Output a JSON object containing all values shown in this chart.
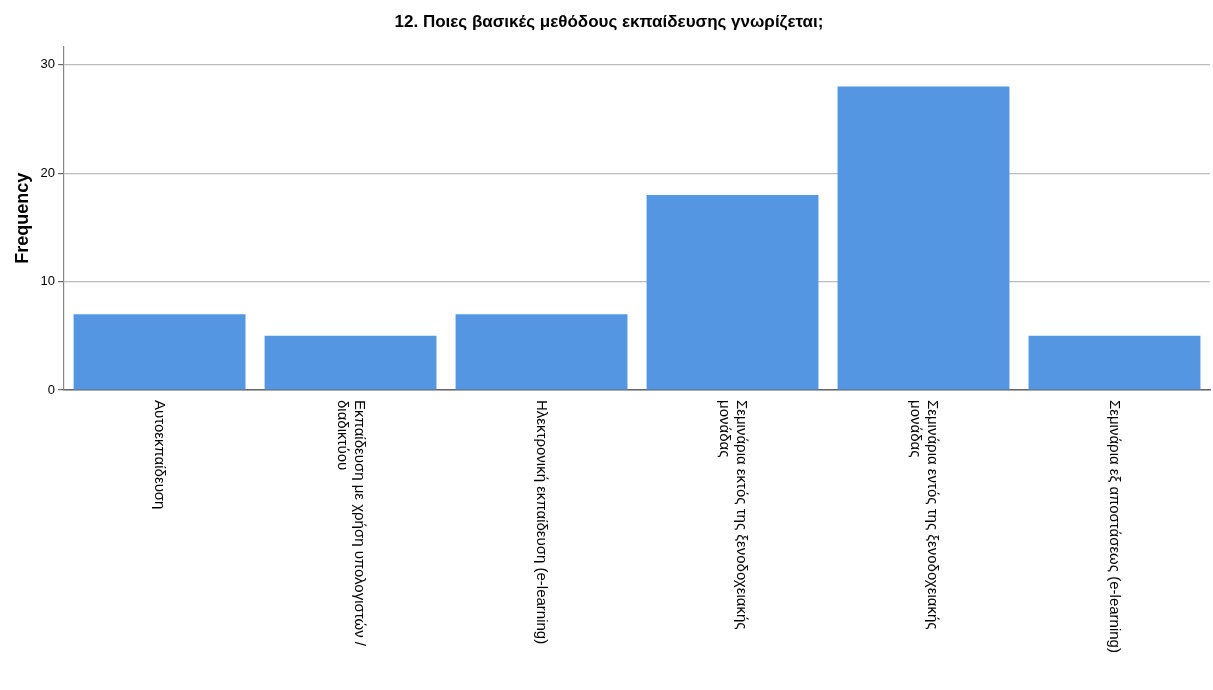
{
  "chart_data": {
    "type": "bar",
    "title": "12. Ποιες βασικές μεθόδους εκπαίδευσης γνωρίζεται;",
    "ylabel": "Frequency",
    "categories": [
      "Αυτοεκπαίδευση",
      "Εκπαίδευση με χρήση υπολογιστών / διαδικτύου",
      "Ηλεκτρονική εκπαίδευση (e-learning)",
      "Σεμινάρια εκτός της ξενοδοχειακής μονάδας",
      "Σεμινάρια εντός της ξενοδοχειακής μονάδας",
      "Σεμινάρια εξ αποστάσεως (e-learning)"
    ],
    "values": [
      7,
      5,
      7,
      18,
      28,
      5
    ],
    "color": "#5596e3",
    "ylim": [
      0,
      31.7
    ],
    "yticks": [
      0,
      10,
      20,
      30
    ],
    "grid": "y",
    "legend": false
  }
}
